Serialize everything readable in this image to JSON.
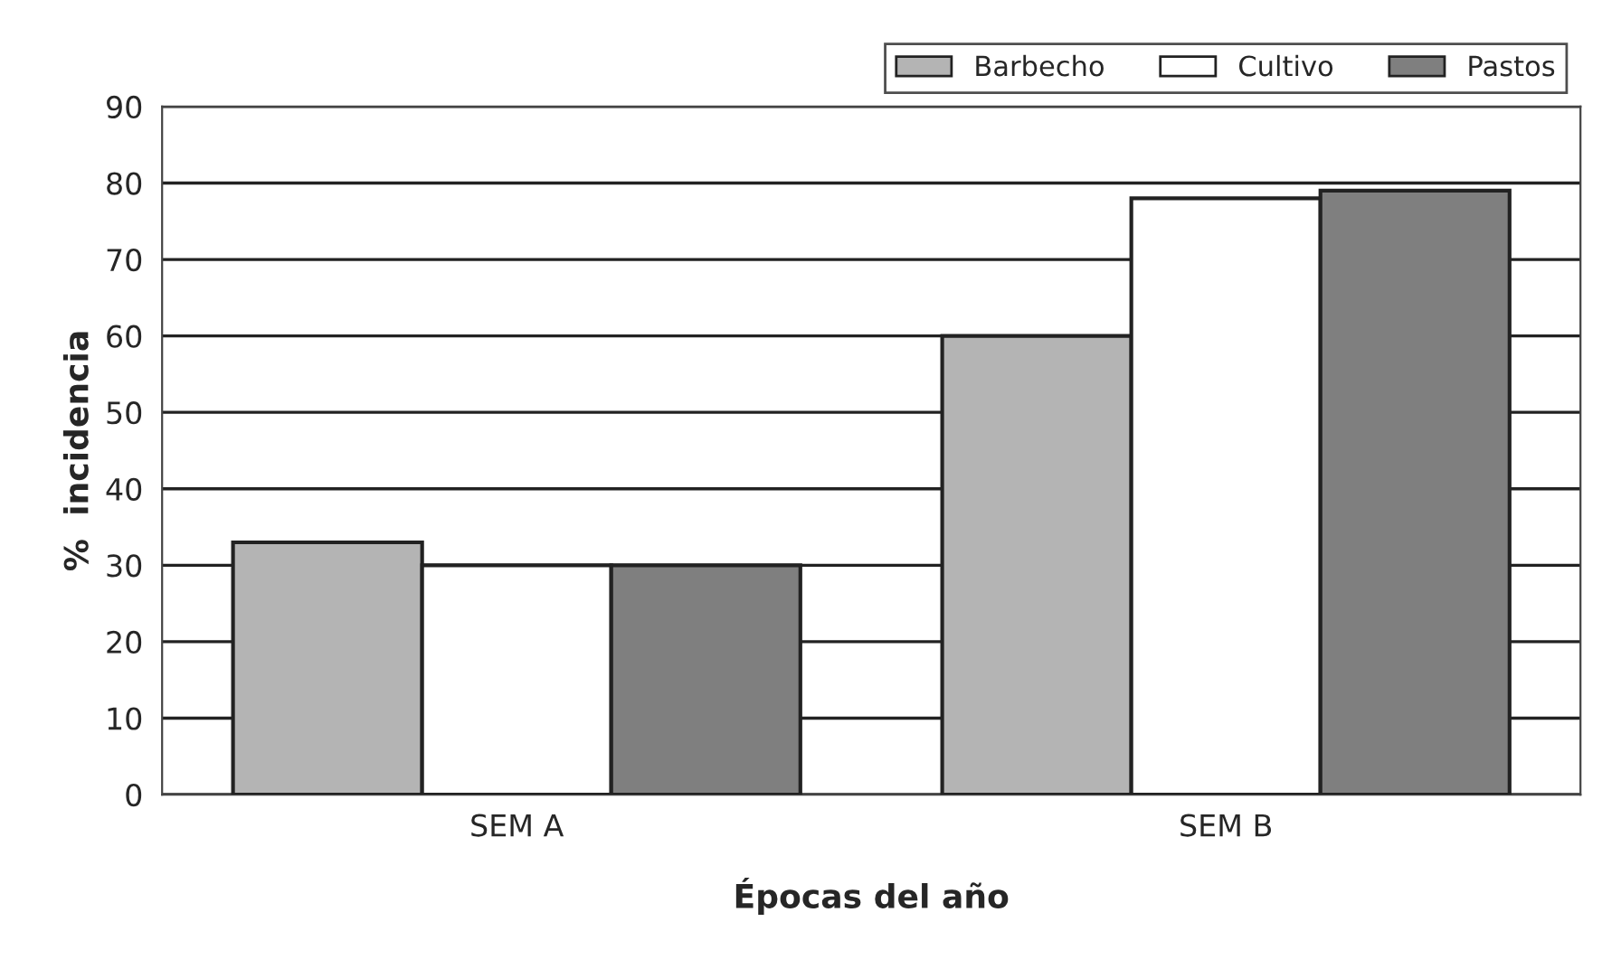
{
  "chart_data": {
    "type": "bar",
    "xlabel": "Épocas del año",
    "ylabel": "%  incidencia",
    "categories": [
      "SEM A",
      "SEM B"
    ],
    "series": [
      {
        "name": "Barbecho",
        "color": "#b4b4b4",
        "values": [
          33,
          60
        ]
      },
      {
        "name": "Cultivo",
        "color": "#ffffff",
        "values": [
          30,
          78
        ]
      },
      {
        "name": "Pastos",
        "color": "#7f7f7f",
        "values": [
          30,
          79
        ]
      }
    ],
    "ylim": [
      0,
      90
    ],
    "yticks": [
      0,
      10,
      20,
      30,
      40,
      50,
      60,
      70,
      80,
      90
    ],
    "grid": "y",
    "legend": "top right"
  }
}
